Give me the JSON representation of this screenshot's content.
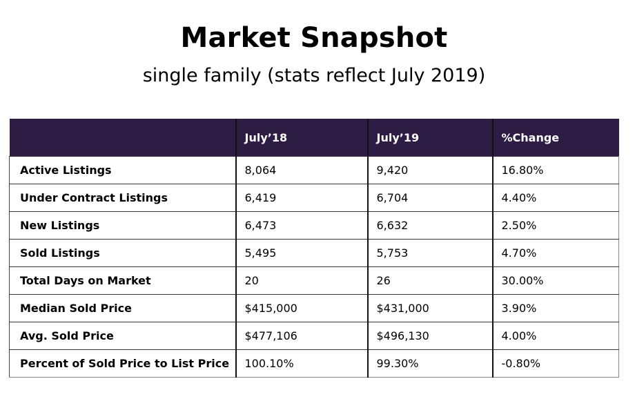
{
  "header": {
    "title": "Market Snapshot",
    "subtitle": "single family (stats reflect July 2019)"
  },
  "colors": {
    "header_bg": "#2d1d45",
    "header_text": "#ffffff"
  },
  "table": {
    "columns": [
      "",
      "July’18",
      "July’19",
      "%Change"
    ],
    "rows": [
      {
        "label": "Active Listings",
        "july18": "8,064",
        "july19": "9,420",
        "change": "16.80%"
      },
      {
        "label": "Under Contract Listings",
        "july18": "6,419",
        "july19": "6,704",
        "change": "4.40%"
      },
      {
        "label": "New Listings",
        "july18": "6,473",
        "july19": "6,632",
        "change": "2.50%"
      },
      {
        "label": "Sold Listings",
        "july18": "5,495",
        "july19": "5,753",
        "change": "4.70%"
      },
      {
        "label": "Total Days on Market",
        "july18": "20",
        "july19": "26",
        "change": "30.00%"
      },
      {
        "label": "Median Sold Price",
        "july18": "$415,000",
        "july19": "$431,000",
        "change": "3.90%"
      },
      {
        "label": "Avg. Sold Price",
        "july18": "$477,106",
        "july19": "$496,130",
        "change": "4.00%"
      },
      {
        "label": "Percent of Sold Price to List Price",
        "july18": "100.10%",
        "july19": "99.30%",
        "change": "-0.80%"
      }
    ]
  }
}
